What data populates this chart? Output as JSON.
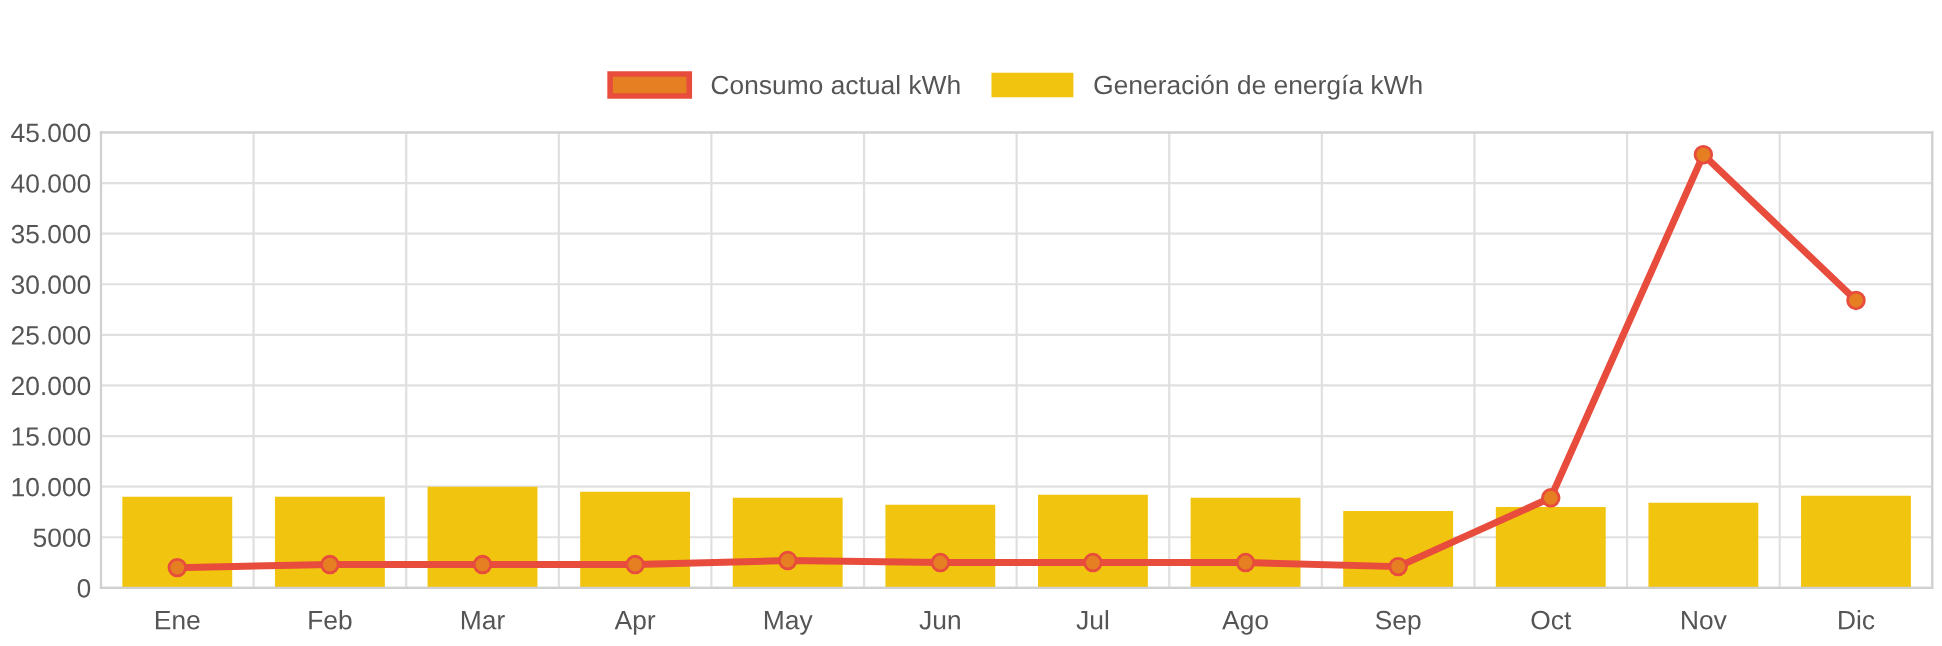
{
  "chart_data": {
    "type": "bar",
    "categories": [
      "Ene",
      "Feb",
      "Mar",
      "Apr",
      "May",
      "Jun",
      "Jul",
      "Ago",
      "Sep",
      "Oct",
      "Nov",
      "Dic"
    ],
    "series": [
      {
        "name": "Consumo actual kWh",
        "type": "line",
        "color": "#e74c3c",
        "marker": "circle",
        "values": [
          2000,
          2300,
          2300,
          2300,
          2700,
          2500,
          2500,
          2500,
          2100,
          8900,
          42800,
          28400
        ]
      },
      {
        "name": "Generación de energía kWh",
        "color": "#f1c40f",
        "values": [
          9000,
          9000,
          10000,
          9500,
          8900,
          8200,
          9200,
          8900,
          7600,
          8000,
          8400,
          9100
        ]
      }
    ],
    "ylim": [
      0,
      45000
    ],
    "yticks": [
      0,
      5000,
      {
        "value": 10000,
        "label": "10.000"
      },
      {
        "value": 15000,
        "label": "15.000"
      },
      {
        "value": 20000,
        "label": "20.000"
      },
      {
        "value": 25000,
        "label": "25.000"
      },
      {
        "value": 30000,
        "label": "30.000"
      },
      {
        "value": 35000,
        "label": "35.000"
      },
      {
        "value": 40000,
        "label": "40.000"
      },
      {
        "value": 45000,
        "label": "45.000"
      }
    ],
    "grid": true,
    "legend": "top"
  }
}
